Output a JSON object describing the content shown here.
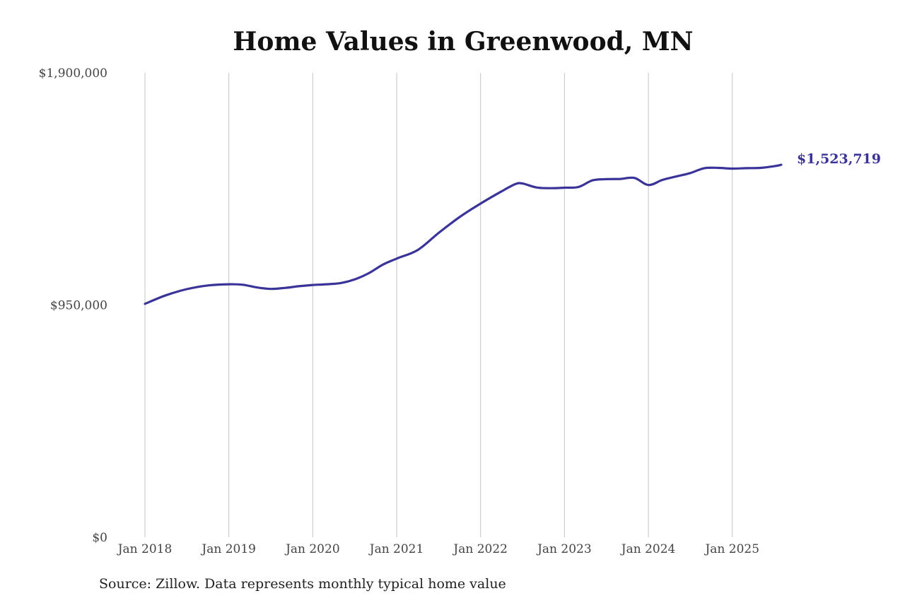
{
  "chart_data": {
    "type": "line",
    "title": "Home Values in Greenwood, MN",
    "xlabel": "",
    "ylabel": "",
    "x_ticks": [
      "Jan 2018",
      "Jan 2019",
      "Jan 2020",
      "Jan 2021",
      "Jan 2022",
      "Jan 2023",
      "Jan 2024",
      "Jan 2025"
    ],
    "y_ticks": [
      "$1,900,000",
      "$950,000",
      "$0"
    ],
    "ylim": [
      0,
      1900000
    ],
    "xlim": [
      "2018-01",
      "2025-08"
    ],
    "grid": "vertical",
    "line_color": "#3a3399",
    "end_label": "$1,523,719",
    "series": [
      {
        "x": [
          "2018-01",
          "2018-04",
          "2018-07",
          "2018-10",
          "2019-01",
          "2019-03",
          "2019-05",
          "2019-07",
          "2019-09",
          "2019-11",
          "2020-01",
          "2020-03",
          "2020-05",
          "2020-07",
          "2020-09",
          "2020-11",
          "2021-01",
          "2021-04",
          "2021-07",
          "2021-10",
          "2022-01",
          "2022-04",
          "2022-06",
          "2022-07",
          "2022-09",
          "2022-11",
          "2023-01",
          "2023-03",
          "2023-05",
          "2023-07",
          "2023-09",
          "2023-11",
          "2024-01",
          "2024-03",
          "2024-05",
          "2024-07",
          "2024-09",
          "2024-11",
          "2025-01",
          "2025-03",
          "2025-05",
          "2025-07",
          "2025-08"
        ],
        "values": [
          955000,
          990000,
          1015000,
          1030000,
          1035000,
          1033000,
          1022000,
          1016000,
          1020000,
          1027000,
          1032000,
          1035000,
          1040000,
          1055000,
          1080000,
          1115000,
          1140000,
          1175000,
          1245000,
          1310000,
          1365000,
          1415000,
          1445000,
          1447000,
          1431000,
          1428000,
          1430000,
          1433000,
          1460000,
          1465000,
          1466000,
          1470000,
          1441000,
          1462000,
          1476000,
          1490000,
          1510000,
          1511000,
          1508000,
          1510000,
          1511000,
          1518000,
          1523719
        ]
      }
    ]
  },
  "source_note": "Source: Zillow. Data represents monthly typical home value"
}
